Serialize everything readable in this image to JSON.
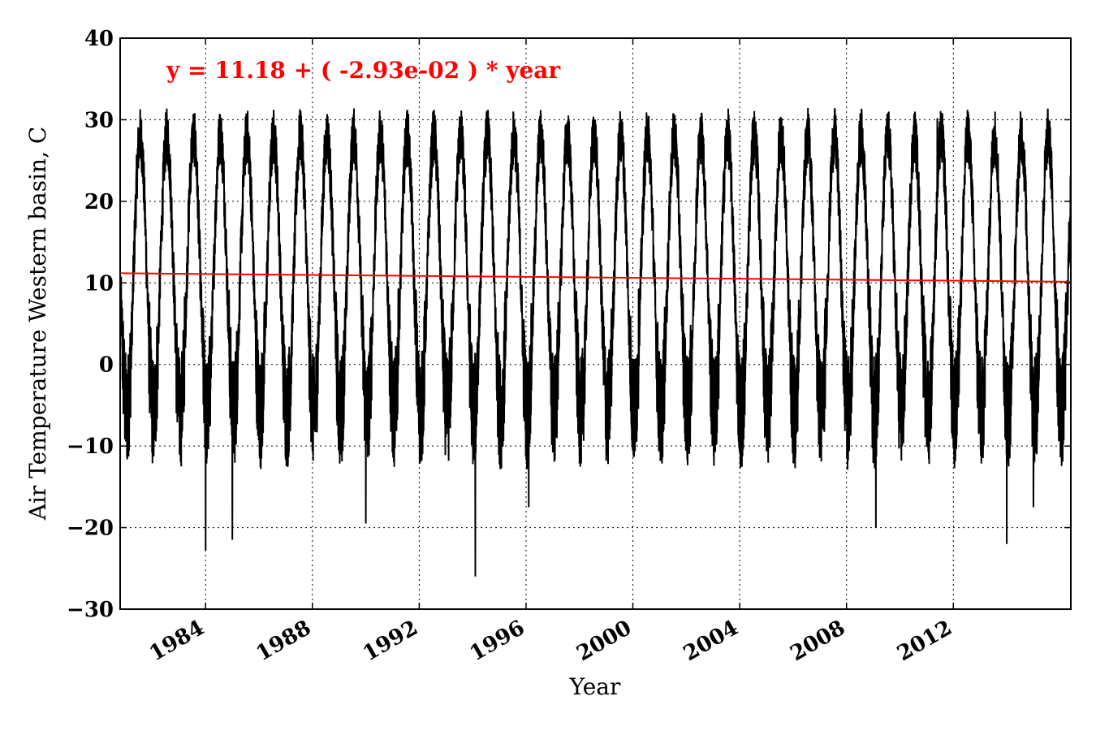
{
  "chart_data": {
    "type": "line",
    "title": "",
    "xlabel": "Year",
    "ylabel": "Air Temperature Western basin, C",
    "xlim": [
      1980.8,
      2016.4
    ],
    "ylim": [
      -30,
      40
    ],
    "y_ticks": [
      40,
      30,
      20,
      10,
      0,
      -10,
      -20,
      -30
    ],
    "y_tick_labels": [
      "40",
      "30",
      "20",
      "10",
      "0",
      "−10",
      "−20",
      "−30"
    ],
    "x_ticks": [
      1984,
      1988,
      1992,
      1996,
      2000,
      2004,
      2008,
      2012
    ],
    "x_tick_labels": [
      "1984",
      "1988",
      "1992",
      "1996",
      "2000",
      "2004",
      "2008",
      "2012"
    ],
    "grid": true,
    "annotation": {
      "text": "y = 11.18 + ( -2.93e-02 ) * year",
      "color": "#ff0000"
    },
    "series": [
      {
        "color": "#000000",
        "description_values": {
          "period_years": 1,
          "typical_summer_max": 26,
          "typical_winter_min": -10,
          "notable_minima": [
            {
              "x": 1984.0,
              "y": -22.8
            },
            {
              "x": 1985.0,
              "y": -21.5
            },
            {
              "x": 1990.0,
              "y": -19.5
            },
            {
              "x": 1994.1,
              "y": -26.0
            },
            {
              "x": 1996.1,
              "y": -17.5
            },
            {
              "x": 2009.1,
              "y": -20.0
            },
            {
              "x": 2014.0,
              "y": -22.0
            },
            {
              "x": 2015.0,
              "y": -17.5
            }
          ],
          "notable_maxima": [
            {
              "x": 2011.4,
              "y": 30.2
            },
            {
              "x": 2012.5,
              "y": 30.0
            },
            {
              "x": 2013.5,
              "y": 29.0
            },
            {
              "x": 2006.5,
              "y": 29.2
            }
          ]
        }
      },
      {
        "color": "#ff0000",
        "trend": {
          "x": [
            1980.8,
            2016.4
          ],
          "y": [
            11.18,
            10.14
          ]
        }
      }
    ]
  }
}
